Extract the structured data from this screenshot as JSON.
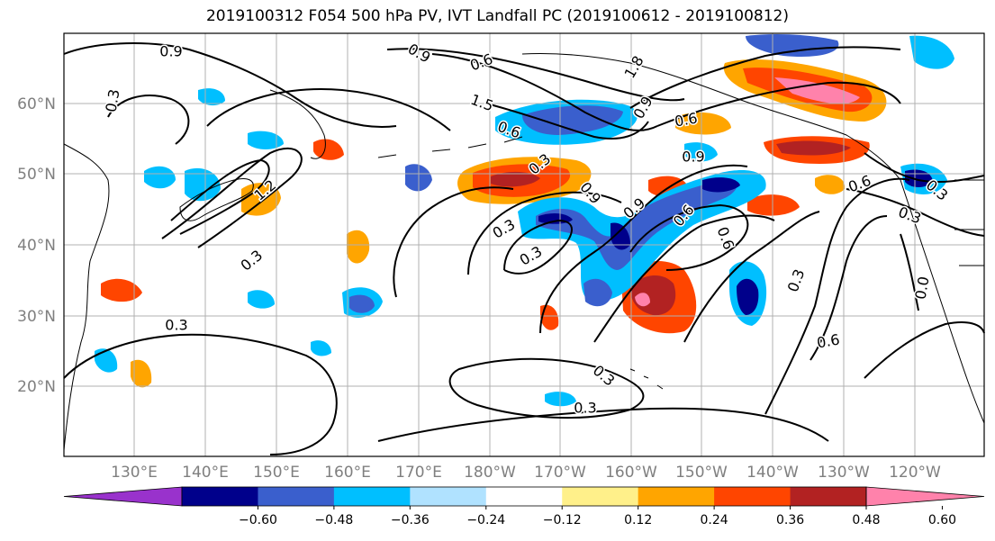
{
  "title": "2019100312 F054 500 hPa PV, IVT Landfall PC (2019100612 - 2019100812)",
  "map": {
    "lat_labels": [
      "60°N",
      "50°N",
      "40°N",
      "30°N",
      "20°N"
    ],
    "lon_labels": [
      "130°E",
      "140°E",
      "150°E",
      "160°E",
      "170°E",
      "180°W",
      "170°W",
      "160°W",
      "150°W",
      "140°W",
      "130°W",
      "120°W"
    ],
    "contour_labels": [
      "0.9",
      "0.3",
      "0.9",
      "0.6",
      "1.5",
      "1.8",
      "0.9",
      "0.6",
      "0.6",
      "0.3",
      "0.9",
      "0.6",
      "0.3",
      "0.3",
      "0.9",
      "0.3",
      "0.6",
      "0.9",
      "0.6",
      "1.2",
      "0.3",
      "0.3",
      "0.3",
      "0.3",
      "0.6",
      "0.3",
      "0.3",
      "0.0"
    ],
    "colors": {
      "ocean": "#ffffff",
      "grid": "#b0b0b0",
      "contour": "#000000",
      "coast": "#000000"
    }
  },
  "colorbar": {
    "colors": [
      "#9932cc",
      "#00008b",
      "#3a5fcd",
      "#00bfff",
      "#b0e2ff",
      "#ffffff",
      "#fff08a",
      "#ffa500",
      "#ff4500",
      "#b22222",
      "#ff82ab"
    ],
    "tick_labels": [
      "−0.60",
      "−0.48",
      "−0.36",
      "−0.24",
      "−0.12",
      "0.12",
      "0.24",
      "0.36",
      "0.48",
      "0.60"
    ]
  }
}
